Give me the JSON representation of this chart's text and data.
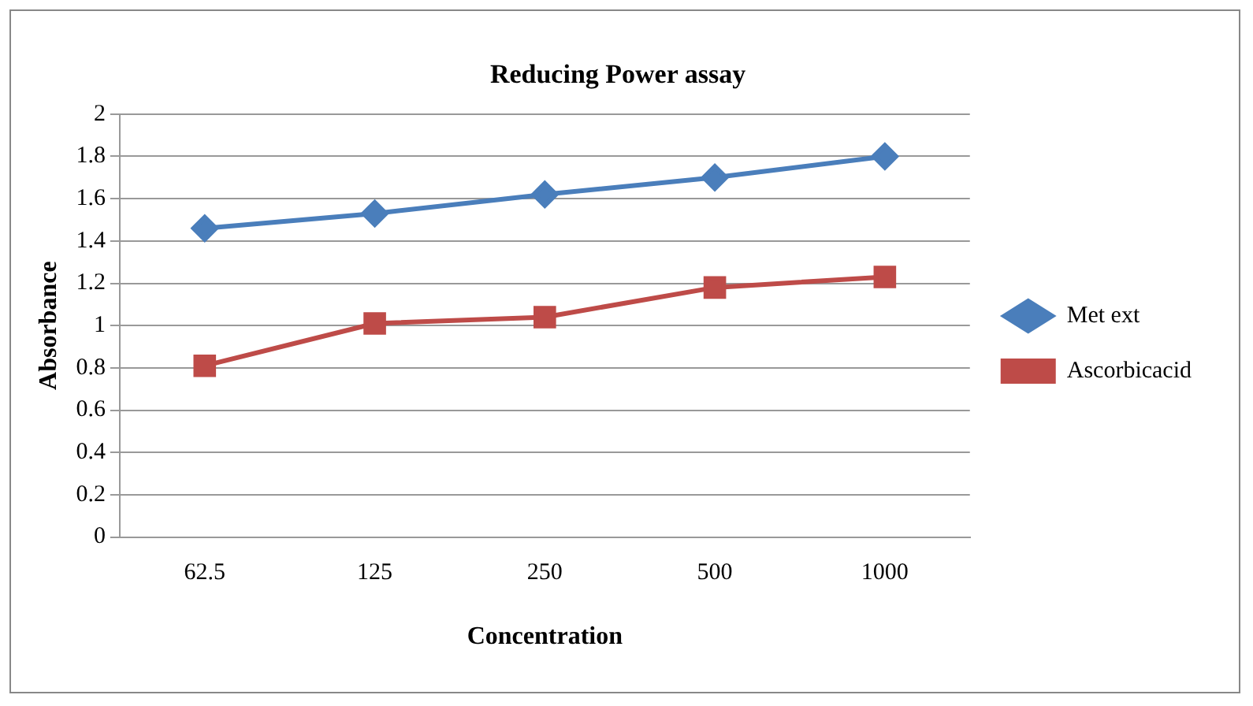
{
  "chart_data": {
    "type": "line",
    "title": "Reducing Power assay",
    "xlabel": "Concentration",
    "ylabel": "Absorbance",
    "categories": [
      "62.5",
      "125",
      "250",
      "500",
      "1000"
    ],
    "series": [
      {
        "name": "Met ext",
        "color": "#4a7ebb",
        "marker": "diamond",
        "values": [
          1.46,
          1.53,
          1.62,
          1.7,
          1.8
        ]
      },
      {
        "name": "Ascorbicacid",
        "color": "#be4b48",
        "marker": "square",
        "values": [
          0.81,
          1.01,
          1.04,
          1.18,
          1.23
        ]
      }
    ],
    "ylim": [
      0,
      2
    ],
    "yticks": [
      0,
      0.2,
      0.4,
      0.6,
      0.8,
      1,
      1.2,
      1.4,
      1.6,
      1.8,
      2
    ],
    "grid": "y",
    "legend": "right",
    "line_style": "solid"
  }
}
